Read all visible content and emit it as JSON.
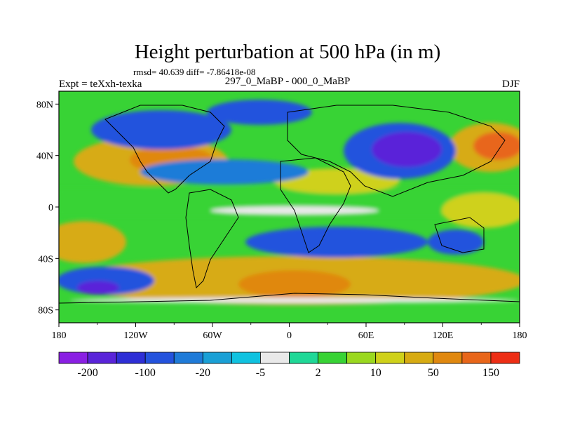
{
  "title": "Height perturbation at 500 hPa (in m)",
  "stats_line": "rmsd= 40.639 diff= -7.86418e-08",
  "experiment_label": "Expt = teXxh-texka",
  "comparison_label": "297_0_MaBP - 000_0_MaBP",
  "season_label": "DJF",
  "map": {
    "lon_ticks": [
      "180",
      "120W",
      "60W",
      "0",
      "60E",
      "120E",
      "180"
    ],
    "lat_ticks": [
      "80N",
      "40N",
      "0",
      "40S",
      "80S"
    ]
  },
  "colorbar": {
    "colors": [
      "#8a1fe3",
      "#5a24d9",
      "#2e2fd6",
      "#2453dd",
      "#1f7bd8",
      "#1aa0d6",
      "#10c2e0",
      "#e9e9e9",
      "#1fd897",
      "#38d335",
      "#9ad81f",
      "#cfd11a",
      "#d7ab12",
      "#e0880f",
      "#e8661a",
      "#ed2e15"
    ],
    "labels": [
      "-200",
      "-100",
      "-20",
      "-5",
      "2",
      "10",
      "50",
      "150"
    ]
  },
  "palette": {
    "pos_strong": "#e0880f",
    "pos_mid": "#d7ab12",
    "pos_weak": "#cfd11a",
    "pos_green": "#38d335",
    "near_zero": "#e9e9e9",
    "neg_cyan": "#10c2e0",
    "neg_mid": "#1f7bd8",
    "neg_blue": "#2453dd",
    "neg_strong": "#5a24d9"
  }
}
